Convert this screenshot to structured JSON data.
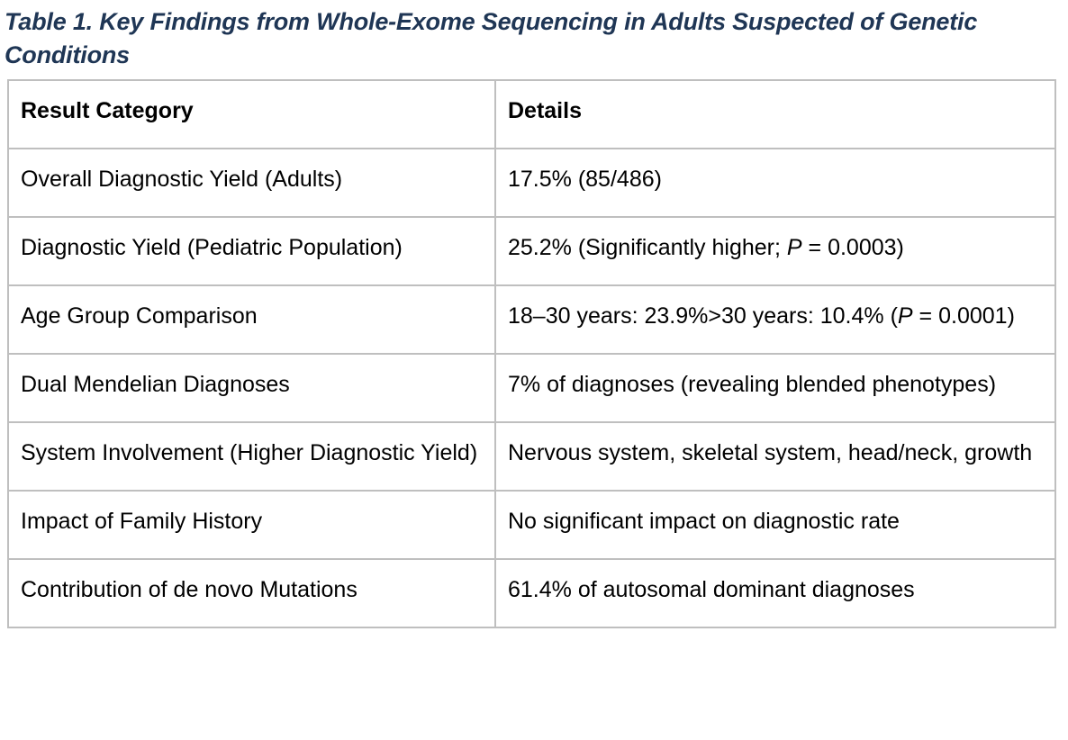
{
  "page": {
    "title": "Table 1. Key Findings from Whole-Exome Sequencing in Adults Suspected of Genetic Conditions"
  },
  "colors": {
    "title_text": "#1f3655",
    "table_border": "#bfbfbf",
    "body_text": "#000000",
    "background": "#ffffff"
  },
  "table": {
    "columns": [
      "Result Category",
      "Details"
    ],
    "rows": [
      {
        "category": "Overall Diagnostic Yield (Adults)",
        "details": [
          {
            "t": "17.5% (85/486)"
          }
        ]
      },
      {
        "category": "Diagnostic Yield (Pediatric Population)",
        "details": [
          {
            "t": "25.2% (Significantly higher; "
          },
          {
            "t": "P",
            "i": true
          },
          {
            "t": " = 0.0003)"
          }
        ]
      },
      {
        "category": "Age Group Comparison",
        "details": [
          {
            "t": "18–30 years: 23.9%>30 years: 10.4% ("
          },
          {
            "t": "P",
            "i": true
          },
          {
            "t": " = 0.0001)"
          }
        ]
      },
      {
        "category": "Dual Mendelian Diagnoses",
        "details": [
          {
            "t": "7% of diagnoses (revealing blended phenotypes)"
          }
        ]
      },
      {
        "category": "System Involvement (Higher Diagnostic Yield)",
        "details": [
          {
            "t": "Nervous system, skeletal system, head/neck, growth"
          }
        ]
      },
      {
        "category": "Impact of Family History",
        "details": [
          {
            "t": "No significant impact on diagnostic rate"
          }
        ]
      },
      {
        "category": "Contribution of de novo Mutations",
        "details": [
          {
            "t": "61.4% of autosomal dominant diagnoses"
          }
        ]
      }
    ]
  }
}
